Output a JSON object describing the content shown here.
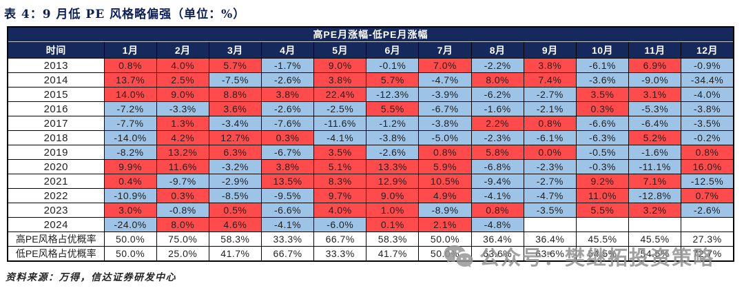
{
  "title": "表 4：9 月低 PE 风格略偏强（单位：%）",
  "chart_data": {
    "type": "table",
    "merged_header": "高PE月涨幅-低PE月涨幅",
    "columns": [
      "时间",
      "1月",
      "2月",
      "3月",
      "4月",
      "5月",
      "6月",
      "7月",
      "8月",
      "9月",
      "10月",
      "11月",
      "12月"
    ],
    "rows": [
      {
        "label": "2013",
        "values": [
          "0.8%",
          "4.0%",
          "5.7%",
          "-1.7%",
          "9.0%",
          "-0.1%",
          "7.0%",
          "-2.2%",
          "3.8%",
          "-6.1%",
          "6.9%",
          "-0.9%"
        ]
      },
      {
        "label": "2014",
        "values": [
          "13.7%",
          "2.5%",
          "-7.5%",
          "-2.6%",
          "3.8%",
          "5.7%",
          "-4.7%",
          "8.0%",
          "7.4%",
          "-3.6%",
          "-9.0%",
          "-34.4%"
        ]
      },
      {
        "label": "2015",
        "values": [
          "14.0%",
          "9.0%",
          "8.8%",
          "3.8%",
          "22.4%",
          "-12.3%",
          "-3.9%",
          "-6.2%",
          "-2.7%",
          "3.5%",
          "3.1%",
          "-4.0%"
        ]
      },
      {
        "label": "2016",
        "values": [
          "-7.2%",
          "-3.3%",
          "3.6%",
          "-2.6%",
          "-2.5%",
          "5.5%",
          "-6.7%",
          "-1.6%",
          "-2.1%",
          "0.3%",
          "-5.3%",
          "-3.8%"
        ]
      },
      {
        "label": "2017",
        "values": [
          "-7.7%",
          "1.3%",
          "-3.4%",
          "-7.6%",
          "-11.6%",
          "-1.2%",
          "-3.8%",
          "2.2%",
          "0.8%",
          "-6.6%",
          "-6.4%",
          "-3.5%"
        ]
      },
      {
        "label": "2018",
        "values": [
          "-14.0%",
          "4.2%",
          "12.7%",
          "0.3%",
          "-4.1%",
          "-3.8%",
          "-5.0%",
          "-2.3%",
          "-6.1%",
          "-6.3%",
          "5.2%",
          "-0.2%"
        ]
      },
      {
        "label": "2019",
        "values": [
          "-8.2%",
          "13.2%",
          "6.3%",
          "-6.7%",
          "3.5%",
          "-2.6%",
          "0.8%",
          "5.8%",
          "0.0%",
          "-0.5%",
          "-1.6%",
          "0.8%"
        ]
      },
      {
        "label": "2020",
        "values": [
          "9.9%",
          "11.6%",
          "-3.2%",
          "3.8%",
          "5.1%",
          "13.3%",
          "5.9%",
          "-6.8%",
          "-2.3%",
          "-0.3%",
          "-11.1%",
          "16.0%"
        ]
      },
      {
        "label": "2021",
        "values": [
          "0.4%",
          "-9.7%",
          "-2.9%",
          "13.5%",
          "8.3%",
          "12.9%",
          "10.5%",
          "-9.4%",
          "-2.7%",
          "9.2%",
          "7.1%",
          "-12.5%"
        ]
      },
      {
        "label": "2022",
        "values": [
          "-10.9%",
          "0.3%",
          "-8.5%",
          "-9.5%",
          "9.7%",
          "9.0%",
          "4.9%",
          "-4.1%",
          "-4.7%",
          "11.0%",
          "-12.8%",
          "0.7%"
        ]
      },
      {
        "label": "2023",
        "values": [
          "3.0%",
          "-0.8%",
          "0.5%",
          "-6.6%",
          "4.0%",
          "1.0%",
          "-8.9%",
          "0.8%",
          "-3.5%",
          "5.5%",
          "3.2%",
          "-2.6%"
        ]
      },
      {
        "label": "2024",
        "values": [
          "-24.0%",
          "8.0%",
          "4.6%",
          "-4.1%",
          "-6.0%",
          "0.1%",
          "2.1%",
          "-4.8%",
          "",
          "",
          "",
          ""
        ]
      }
    ],
    "summary_rows": [
      {
        "label": "高PE风格占优概率",
        "values": [
          "50.0%",
          "75.0%",
          "58.3%",
          "33.3%",
          "66.7%",
          "58.3%",
          "50.0%",
          "36.4%",
          "36.4%",
          "45.5%",
          "45.5%",
          "27.3%"
        ]
      },
      {
        "label": "低PE风格占优概率",
        "values": [
          "50.0%",
          "25.0%",
          "41.7%",
          "66.7%",
          "33.3%",
          "41.7%",
          "50.0%",
          "63.6%",
          "63.6%",
          "54.5%",
          "54.5%",
          "72.7%"
        ]
      }
    ],
    "color_rule": "value >= 0 -> red cell (high-PE wins month), value < 0 -> light-blue cell (low-PE wins month)"
  },
  "colors": {
    "positive_bg": "#ff4b4b",
    "negative_bg": "#9dc3e6",
    "header_bg": "#16295c",
    "header_text": "#ffffff",
    "title_text": "#0b1f5a"
  },
  "source": "资料来源：万得，信达证券研发中心",
  "watermark": {
    "icon": "wechat-icon",
    "text": "公众号：樊继拓投资策略"
  }
}
